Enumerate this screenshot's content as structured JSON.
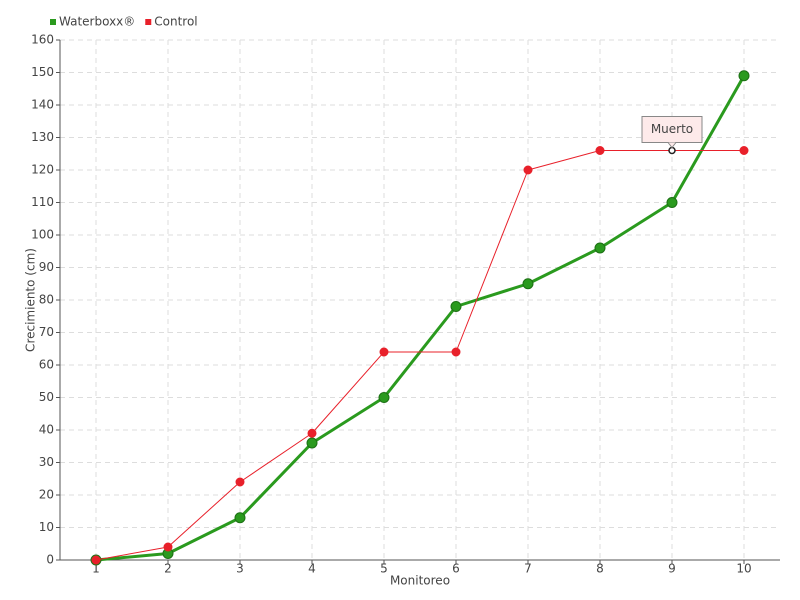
{
  "chart_data": {
    "type": "line",
    "x_label": "Monitoreo",
    "y_label": "Crecimiento (cm)",
    "categories": [
      "1",
      "2",
      "3",
      "4",
      "5",
      "6",
      "7",
      "8",
      "9",
      "10"
    ],
    "series": [
      {
        "name": "Waterboxx®",
        "color": "#2a9a1e",
        "values": [
          0,
          2,
          13,
          36,
          50,
          78,
          85,
          96,
          110,
          149
        ]
      },
      {
        "name": "Control",
        "color": "#e8202a",
        "values": [
          0,
          4,
          24,
          39,
          64,
          64,
          120,
          126,
          126,
          126
        ]
      }
    ],
    "ylim": [
      0,
      160
    ],
    "yticks": [
      0,
      10,
      20,
      30,
      40,
      50,
      60,
      70,
      80,
      90,
      100,
      110,
      120,
      130,
      140,
      150,
      160
    ],
    "grid": true,
    "legend": "top-left",
    "annotations": [
      {
        "label": "Muerto",
        "series": "Control",
        "category": "9"
      }
    ]
  }
}
